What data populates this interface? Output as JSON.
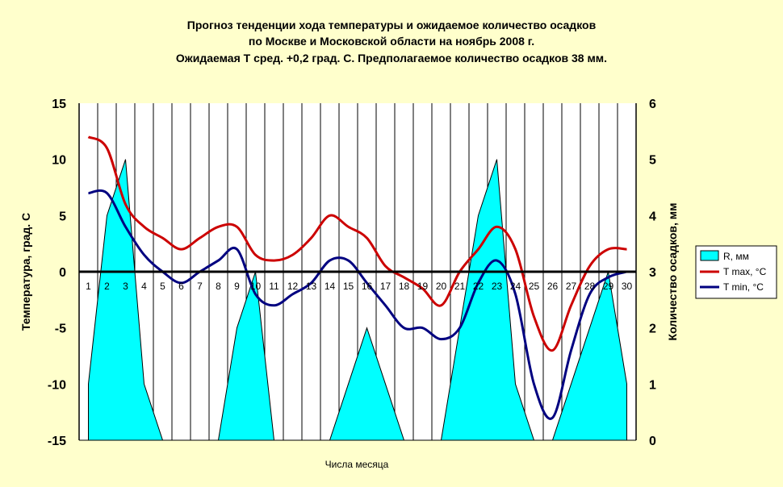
{
  "chart_data": {
    "type": "line",
    "title_lines": [
      "Прогноз тенденции хода температуры и ожидаемое количество осадков",
      "по Москве и Московской области на ноябрь 2008 г.",
      "Ожидаемая Т сред. +0,2 град. С. Предполагаемое количество осадков 38 мм."
    ],
    "xlabel": "Числа месяца",
    "ylabel_left": "Температура, град. С",
    "ylabel_right": "Количество осадков, мм",
    "ylim_left": [
      -15,
      15
    ],
    "ylim_right": [
      0,
      6
    ],
    "yticks_left": [
      "15",
      "10",
      "5",
      "0",
      "-5",
      "-10",
      "-15"
    ],
    "yticks_right": [
      "6",
      "5",
      "4",
      "3",
      "2",
      "1",
      "0"
    ],
    "x": [
      "1",
      "2",
      "3",
      "4",
      "5",
      "6",
      "7",
      "8",
      "9",
      "10",
      "11",
      "12",
      "13",
      "14",
      "15",
      "16",
      "17",
      "18",
      "19",
      "20",
      "21",
      "22",
      "23",
      "24",
      "25",
      "26",
      "27",
      "28",
      "29",
      "30"
    ],
    "series": [
      {
        "name": "R, мм",
        "axis": "right",
        "kind": "area",
        "color": "#00ffff",
        "values": [
          1,
          4,
          5,
          1,
          0,
          0,
          0,
          0,
          2,
          3,
          0,
          0,
          0,
          0,
          1,
          2,
          1,
          0,
          0,
          0,
          2,
          4,
          5,
          1,
          0,
          0,
          1,
          2,
          3,
          1
        ]
      },
      {
        "name": "T max, °C",
        "axis": "left",
        "kind": "line",
        "color": "#cc0000",
        "values": [
          12,
          11,
          6,
          4,
          3,
          2,
          3,
          4,
          4,
          1.5,
          1,
          1.5,
          3,
          5,
          4,
          3,
          0.5,
          -0.5,
          -1.5,
          -3,
          0,
          2,
          4,
          2,
          -4,
          -7,
          -3,
          0.5,
          2,
          2
        ]
      },
      {
        "name": "T min, °C",
        "axis": "left",
        "kind": "line",
        "color": "#000080",
        "values": [
          7,
          7,
          4,
          1.5,
          0,
          -1,
          0,
          1,
          2,
          -2,
          -3,
          -2,
          -1,
          1,
          1,
          -1,
          -3,
          -5,
          -5,
          -6,
          -5,
          -1,
          1,
          -2,
          -10,
          -13,
          -7,
          -2,
          -0.5,
          0
        ]
      }
    ],
    "grid": true,
    "legend_position": "right"
  },
  "colors": {
    "background": "#ffffcc",
    "plot_area": "#ffffff",
    "precip_fill": "#00ffff",
    "tmax": "#cc0000",
    "tmin": "#000080"
  }
}
